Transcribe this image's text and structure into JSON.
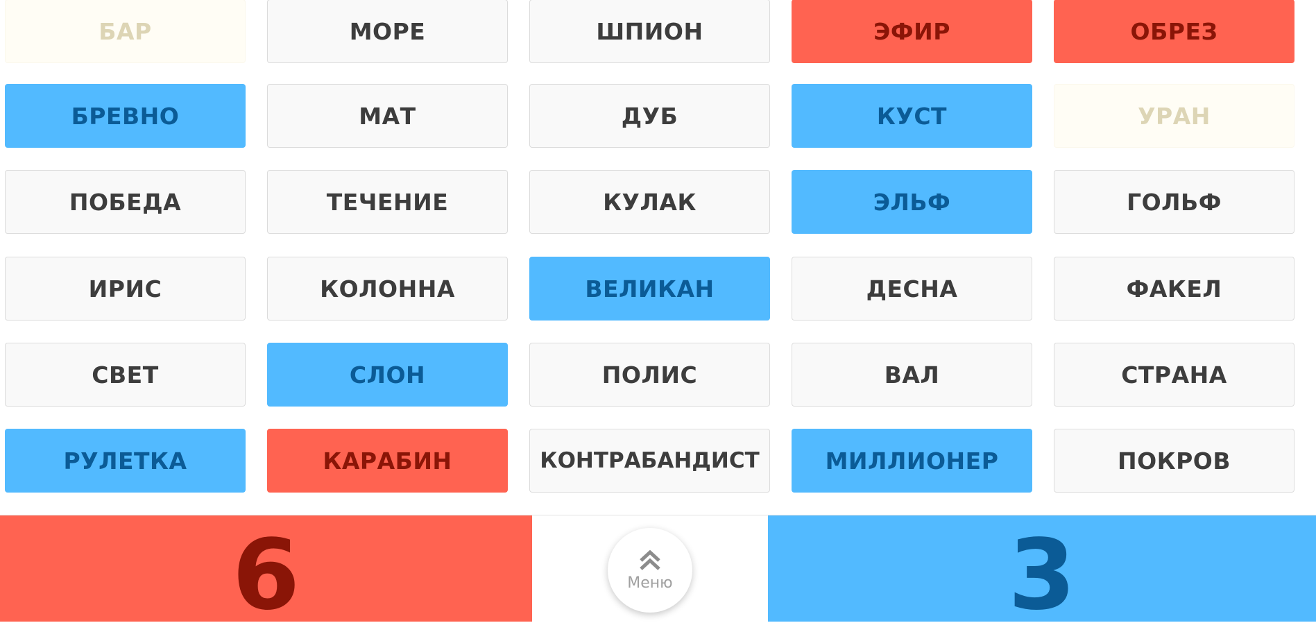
{
  "board": {
    "rows": [
      [
        {
          "word": "БАР",
          "team": "faded"
        },
        {
          "word": "МОРЕ",
          "team": "neutral"
        },
        {
          "word": "ШПИОН",
          "team": "neutral"
        },
        {
          "word": "ЭФИР",
          "team": "red"
        },
        {
          "word": "ОБРЕЗ",
          "team": "red"
        }
      ],
      [
        {
          "word": "БРЕВНО",
          "team": "blue"
        },
        {
          "word": "МАТ",
          "team": "neutral"
        },
        {
          "word": "ДУБ",
          "team": "neutral"
        },
        {
          "word": "КУСТ",
          "team": "blue"
        },
        {
          "word": "УРАН",
          "team": "faded"
        }
      ],
      [
        {
          "word": "ПОБЕДА",
          "team": "neutral"
        },
        {
          "word": "ТЕЧЕНИЕ",
          "team": "neutral"
        },
        {
          "word": "КУЛАК",
          "team": "neutral"
        },
        {
          "word": "ЭЛЬФ",
          "team": "blue"
        },
        {
          "word": "ГОЛЬФ",
          "team": "neutral"
        }
      ],
      [
        {
          "word": "ИРИС",
          "team": "neutral"
        },
        {
          "word": "КОЛОННА",
          "team": "neutral"
        },
        {
          "word": "ВЕЛИКАН",
          "team": "blue"
        },
        {
          "word": "ДЕСНА",
          "team": "neutral"
        },
        {
          "word": "ФАКЕЛ",
          "team": "neutral"
        }
      ],
      [
        {
          "word": "СВЕТ",
          "team": "neutral"
        },
        {
          "word": "СЛОН",
          "team": "blue"
        },
        {
          "word": "ПОЛИС",
          "team": "neutral"
        },
        {
          "word": "ВАЛ",
          "team": "neutral"
        },
        {
          "word": "СТРАНА",
          "team": "neutral"
        }
      ],
      [
        {
          "word": "РУЛЕТКА",
          "team": "blue"
        },
        {
          "word": "КАРАБИН",
          "team": "red"
        },
        {
          "word": "КОНТРАБАНДИСТ",
          "team": "neutral"
        },
        {
          "word": "МИЛЛИОНЕР",
          "team": "blue"
        },
        {
          "word": "ПОКРОВ",
          "team": "neutral"
        }
      ]
    ]
  },
  "score": {
    "red": "6",
    "blue": "3"
  },
  "menu": {
    "label": "Меню",
    "icon": "double-chevron-up-icon"
  },
  "colors": {
    "red": "#ff6351",
    "red_text": "#8a1507",
    "blue": "#52baff",
    "blue_text": "#0b5b96",
    "neutral": "#f9f9f9",
    "neutral_text": "#3d3d3d",
    "faded": "#fffdf5",
    "faded_text": "#ddd5b5"
  }
}
